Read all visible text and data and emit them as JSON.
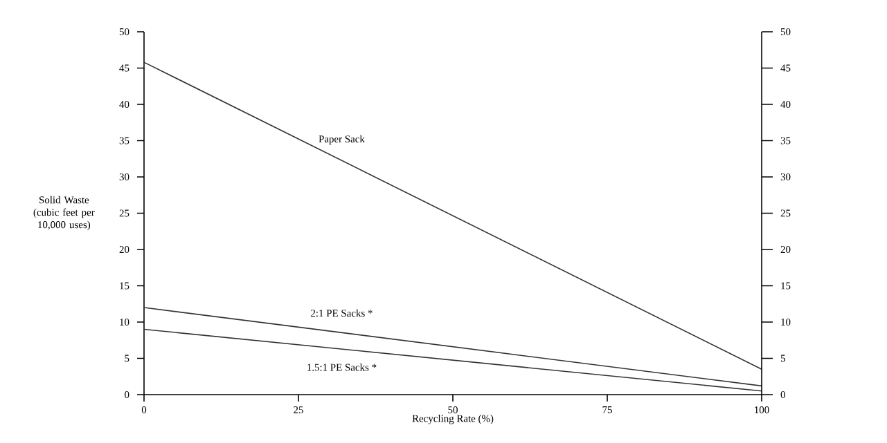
{
  "chart_data": {
    "type": "line",
    "xlabel": "Recycling Rate (%)",
    "ylabel": "Solid Waste (cubic feet per 10,000 uses)",
    "x": [
      0,
      100
    ],
    "series": [
      {
        "name": "Paper Sack",
        "color": "#333333",
        "values": [
          45.8,
          3.5
        ]
      },
      {
        "name": "2:1 PE Sacks *",
        "color": "#333333",
        "values": [
          12,
          1.2
        ]
      },
      {
        "name": "1.5:1 PE Sacks *",
        "color": "#333333",
        "values": [
          9,
          0.5
        ]
      }
    ],
    "xlim": [
      0,
      100
    ],
    "xticks": [
      0,
      25,
      50,
      75,
      100
    ],
    "ylim": [
      0,
      50
    ],
    "yticks": [
      0,
      5,
      10,
      15,
      20,
      25,
      30,
      35,
      40,
      45,
      50
    ],
    "y2lim": [
      0,
      50
    ],
    "y2ticks": [
      0,
      5,
      10,
      15,
      20,
      25,
      30,
      35,
      40,
      45,
      50
    ],
    "grid": false,
    "legend": false,
    "marker": "none",
    "line_style": "solid"
  }
}
